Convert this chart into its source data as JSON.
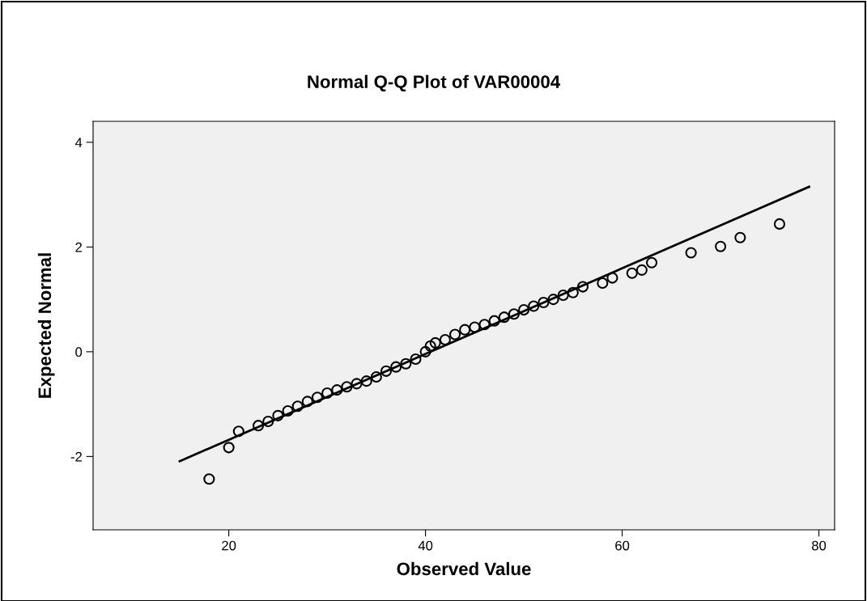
{
  "chart_data": {
    "type": "scatter",
    "title": "Normal Q-Q Plot of VAR00004",
    "xlabel": "Observed Value",
    "ylabel": "Expected Normal",
    "series": [
      {
        "color": "#000000",
        "marker": "circle",
        "x": [
          18,
          20,
          21,
          23,
          24,
          25,
          26,
          27,
          28,
          29,
          30,
          31,
          32,
          33,
          34,
          35,
          36,
          37,
          38,
          39,
          40,
          40.5,
          41,
          42,
          43,
          44,
          45,
          46,
          47,
          48,
          49,
          50,
          51,
          52,
          53,
          54,
          55,
          56,
          58,
          59,
          61,
          62,
          63,
          67,
          70,
          72,
          76
        ],
        "values": [
          -2.43,
          -1.83,
          -1.52,
          -1.41,
          -1.33,
          -1.22,
          -1.13,
          -1.04,
          -0.95,
          -0.87,
          -0.79,
          -0.73,
          -0.67,
          -0.61,
          -0.56,
          -0.48,
          -0.37,
          -0.29,
          -0.23,
          -0.14,
          0,
          0.11,
          0.17,
          0.23,
          0.33,
          0.42,
          0.47,
          0.52,
          0.59,
          0.66,
          0.72,
          0.8,
          0.87,
          0.94,
          1.0,
          1.08,
          1.13,
          1.24,
          1.31,
          1.41,
          1.5,
          1.56,
          1.7,
          1.89,
          2.01,
          2.18,
          2.44
        ]
      },
      {
        "type": "line",
        "color": "#000000",
        "x": [
          15,
          79
        ],
        "values": [
          -2.09,
          3.15
        ]
      }
    ],
    "xlim": [
      6.2,
      81.6
    ],
    "ylim": [
      -3.4,
      4.4
    ],
    "xticks": [
      20,
      40,
      60,
      80
    ],
    "yticks": [
      -2,
      0,
      2,
      4
    ],
    "grid": false,
    "legend": false
  }
}
